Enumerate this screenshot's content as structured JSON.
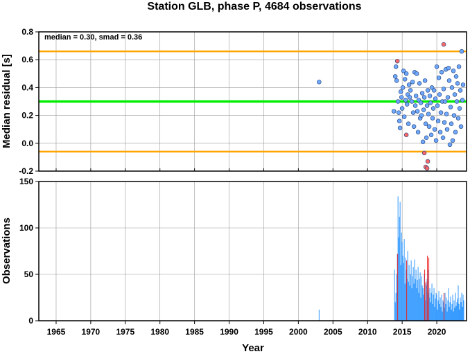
{
  "title": "Station GLB, phase P, 4684 observations",
  "chart_data": [
    {
      "type": "scatter",
      "ylabel": "Median residual [s]",
      "xlim": [
        1962.5,
        2024.3
      ],
      "ylim": [
        -0.2,
        0.8
      ],
      "yticks": [
        -0.2,
        0.0,
        0.2,
        0.4,
        0.6,
        0.8
      ],
      "ytick_labels": [
        "-0.2",
        "0.0",
        "0.2",
        "0.4",
        "0.6",
        "0.8"
      ],
      "annotation": "median = 0.30, smad = 0.36",
      "reference_lines": [
        {
          "role": "median",
          "y": 0.3,
          "color": "#00ee00"
        },
        {
          "role": "upper",
          "y": 0.66,
          "color": "#ffa500"
        },
        {
          "role": "lower",
          "y": -0.06,
          "color": "#ffa500"
        }
      ],
      "series": [
        {
          "role": "normal",
          "color": "#6fa8ff",
          "points": [
            [
              2003.0,
              0.44
            ],
            [
              2013.8,
              0.23
            ],
            [
              2014.0,
              0.48
            ],
            [
              2014.1,
              0.55
            ],
            [
              2014.2,
              0.45
            ],
            [
              2014.4,
              0.3
            ],
            [
              2014.5,
              0.22
            ],
            [
              2014.6,
              0.16
            ],
            [
              2014.7,
              0.11
            ],
            [
              2014.8,
              0.37
            ],
            [
              2014.9,
              0.33
            ],
            [
              2015.0,
              0.25
            ],
            [
              2015.1,
              0.4
            ],
            [
              2015.2,
              0.52
            ],
            [
              2015.3,
              0.19
            ],
            [
              2015.4,
              0.46
            ],
            [
              2015.5,
              0.31
            ],
            [
              2015.6,
              0.5
            ],
            [
              2015.7,
              0.28
            ],
            [
              2015.8,
              0.35
            ],
            [
              2015.9,
              0.14
            ],
            [
              2016.0,
              0.42
            ],
            [
              2016.1,
              0.33
            ],
            [
              2016.2,
              0.38
            ],
            [
              2016.4,
              0.3
            ],
            [
              2016.5,
              0.44
            ],
            [
              2016.6,
              0.22
            ],
            [
              2016.7,
              0.12
            ],
            [
              2016.8,
              0.51
            ],
            [
              2016.9,
              0.27
            ],
            [
              2017.0,
              0.34
            ],
            [
              2017.1,
              0.5
            ],
            [
              2017.2,
              0.23
            ],
            [
              2017.3,
              0.08
            ],
            [
              2017.4,
              0.31
            ],
            [
              2017.5,
              0.43
            ],
            [
              2017.6,
              0.18
            ],
            [
              2017.7,
              0.29
            ],
            [
              2017.8,
              0.2
            ],
            [
              2017.9,
              0.36
            ],
            [
              2018.0,
              0.01
            ],
            [
              2018.1,
              0.24
            ],
            [
              2018.2,
              0.33
            ],
            [
              2018.3,
              0.45
            ],
            [
              2018.4,
              0.14
            ],
            [
              2018.5,
              0.04
            ],
            [
              2018.6,
              0.27
            ],
            [
              2018.7,
              0.38
            ],
            [
              2018.8,
              0.21
            ],
            [
              2018.9,
              0.12
            ],
            [
              2019.0,
              0.34
            ],
            [
              2019.1,
              0.29
            ],
            [
              2019.2,
              0.06
            ],
            [
              2019.3,
              0.4
            ],
            [
              2019.4,
              0.18
            ],
            [
              2019.5,
              0.25
            ],
            [
              2019.6,
              0.38
            ],
            [
              2019.7,
              0.1
            ],
            [
              2019.8,
              0.32
            ],
            [
              2019.9,
              0.02
            ],
            [
              2020.0,
              0.55
            ],
            [
              2020.1,
              0.27
            ],
            [
              2020.2,
              0.16
            ],
            [
              2020.3,
              0.47
            ],
            [
              2020.4,
              0.35
            ],
            [
              2020.5,
              0.08
            ],
            [
              2020.6,
              0.22
            ],
            [
              2020.7,
              0.51
            ],
            [
              2020.8,
              0.3
            ],
            [
              2020.9,
              0.04
            ],
            [
              2021.0,
              0.39
            ],
            [
              2021.1,
              0.15
            ],
            [
              2021.2,
              0.3
            ],
            [
              2021.3,
              0.53
            ],
            [
              2021.4,
              0.21
            ],
            [
              2021.5,
              0.1
            ],
            [
              2021.6,
              0.33
            ],
            [
              2021.7,
              0.54
            ],
            [
              2021.8,
              0.45
            ],
            [
              2021.9,
              -0.01
            ],
            [
              2022.0,
              0.26
            ],
            [
              2022.1,
              0.14
            ],
            [
              2022.2,
              0.4
            ],
            [
              2022.3,
              0.02
            ],
            [
              2022.4,
              0.52
            ],
            [
              2022.5,
              0.2
            ],
            [
              2022.6,
              0.35
            ],
            [
              2022.7,
              0.08
            ],
            [
              2022.8,
              0.48
            ],
            [
              2022.9,
              0.3
            ],
            [
              2023.0,
              0.43
            ],
            [
              2023.1,
              0.18
            ],
            [
              2023.2,
              0.55
            ],
            [
              2023.3,
              0.25
            ],
            [
              2023.4,
              0.38
            ],
            [
              2023.5,
              0.12
            ],
            [
              2023.6,
              0.66
            ],
            [
              2023.7,
              0.31
            ],
            [
              2023.8,
              0.42
            ]
          ]
        },
        {
          "role": "outlier",
          "color": "#ff6666",
          "points": [
            [
              2014.3,
              0.59
            ],
            [
              2015.6,
              0.06
            ],
            [
              2018.2,
              -0.07
            ],
            [
              2018.4,
              -0.17
            ],
            [
              2018.6,
              -0.18
            ],
            [
              2018.7,
              -0.13
            ],
            [
              2021.0,
              0.71
            ]
          ]
        }
      ]
    },
    {
      "type": "bar",
      "ylabel": "Observations",
      "xlabel": "Year",
      "xlim": [
        1962.5,
        2024.3
      ],
      "ylim": [
        0,
        150
      ],
      "yticks": [
        0,
        50,
        100,
        150
      ],
      "ytick_labels": [
        "0",
        "50",
        "100",
        "150"
      ],
      "xticks": [
        1965,
        1970,
        1975,
        1980,
        1985,
        1990,
        1995,
        2000,
        2005,
        2010,
        2015,
        2020
      ],
      "xtick_labels": [
        "1965",
        "1970",
        "1975",
        "1980",
        "1985",
        "1990",
        "1995",
        "2000",
        "2005",
        "2010",
        "2015",
        "2020"
      ],
      "bar_width_years": 0.08,
      "series": [
        {
          "role": "normal",
          "color": "#3399ff",
          "x": [
            2003.0,
            2013.9,
            2014.0,
            2014.1,
            2014.2,
            2014.3,
            2014.4,
            2014.5,
            2014.6,
            2014.7,
            2014.8,
            2014.9,
            2015.0,
            2015.1,
            2015.2,
            2015.3,
            2015.4,
            2015.5,
            2015.6,
            2015.7,
            2015.8,
            2015.9,
            2016.0,
            2016.1,
            2016.2,
            2016.3,
            2016.4,
            2016.5,
            2016.6,
            2016.7,
            2016.8,
            2016.9,
            2017.0,
            2017.1,
            2017.2,
            2017.3,
            2017.4,
            2017.5,
            2017.6,
            2017.7,
            2017.8,
            2017.9,
            2018.0,
            2018.1,
            2018.2,
            2018.3,
            2018.4,
            2018.5,
            2018.6,
            2018.7,
            2018.8,
            2018.9,
            2019.0,
            2019.1,
            2019.2,
            2019.3,
            2019.4,
            2019.5,
            2019.6,
            2019.7,
            2019.8,
            2019.9,
            2020.0,
            2020.1,
            2020.2,
            2020.3,
            2020.4,
            2020.5,
            2020.6,
            2020.7,
            2020.8,
            2020.9,
            2021.0,
            2021.1,
            2021.2,
            2021.3,
            2021.4,
            2021.5,
            2021.6,
            2021.7,
            2021.8,
            2021.9,
            2022.0,
            2022.1,
            2022.2,
            2022.3,
            2022.4,
            2022.5,
            2022.6,
            2022.7,
            2022.8,
            2022.9,
            2023.0,
            2023.1,
            2023.2,
            2023.3,
            2023.4,
            2023.5,
            2023.6,
            2023.7,
            2023.8,
            2023.9
          ],
          "values": [
            12,
            55,
            20,
            30,
            50,
            72,
            134,
            90,
            112,
            128,
            60,
            95,
            85,
            70,
            62,
            88,
            40,
            68,
            55,
            45,
            75,
            42,
            60,
            38,
            50,
            65,
            35,
            48,
            58,
            40,
            66,
            45,
            55,
            35,
            44,
            58,
            30,
            45,
            52,
            25,
            48,
            38,
            35,
            28,
            50,
            40,
            22,
            38,
            45,
            30,
            55,
            25,
            35,
            20,
            30,
            40,
            18,
            28,
            35,
            15,
            24,
            30,
            28,
            12,
            22,
            32,
            18,
            25,
            15,
            28,
            10,
            22,
            20,
            14,
            30,
            18,
            25,
            10,
            22,
            35,
            15,
            20,
            26,
            12,
            18,
            28,
            10,
            22,
            14,
            30,
            16,
            20,
            24,
            38,
            18,
            12,
            25,
            20,
            30,
            15,
            28,
            22
          ]
        },
        {
          "role": "outlier",
          "color": "#ee2222",
          "x": [
            2014.35,
            2015.65,
            2018.25,
            2018.45,
            2018.65,
            2018.85,
            2021.05
          ],
          "values": [
            72,
            65,
            55,
            42,
            70,
            68,
            30
          ]
        }
      ]
    }
  ]
}
